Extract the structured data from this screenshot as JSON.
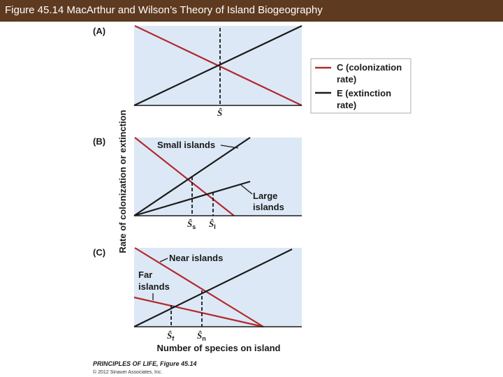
{
  "title": "Figure 45.14  MacArthur and Wilson’s Theory of Island Biogeography",
  "colors": {
    "title_bar": "#5e3a20",
    "panel_bg": "#dce8f5",
    "colonization": "#b3282d",
    "extinction": "#1a1a1a"
  },
  "y_axis_label": "Rate of colonization or extinction",
  "x_axis_label": "Number of species on island",
  "legend": {
    "colonization_line1": "C (colonization",
    "colonization_line2": "rate)",
    "extinction_line1": "E (extinction",
    "extinction_line2": "rate)"
  },
  "panel_a": {
    "label": "(A)",
    "equilibrium": "Ŝ"
  },
  "panel_b": {
    "label": "(B)",
    "small_islands": "Small islands",
    "large_islands_line1": "Large",
    "large_islands_line2": "islands",
    "eq_small_base": "Ŝ",
    "eq_small_sub": "s",
    "eq_large_base": "Ŝ",
    "eq_large_sub": "l"
  },
  "panel_c": {
    "label": "(C)",
    "near_islands": "Near islands",
    "far_islands_line1": "Far",
    "far_islands_line2": "islands",
    "eq_far_base": "Ŝ",
    "eq_far_sub": "f",
    "eq_near_base": "Ŝ",
    "eq_near_sub": "n"
  },
  "credit": {
    "line1": "PRINCIPLES OF LIFE, Figure 45.14",
    "line2": "© 2012 Sinauer Associates, Inc."
  }
}
